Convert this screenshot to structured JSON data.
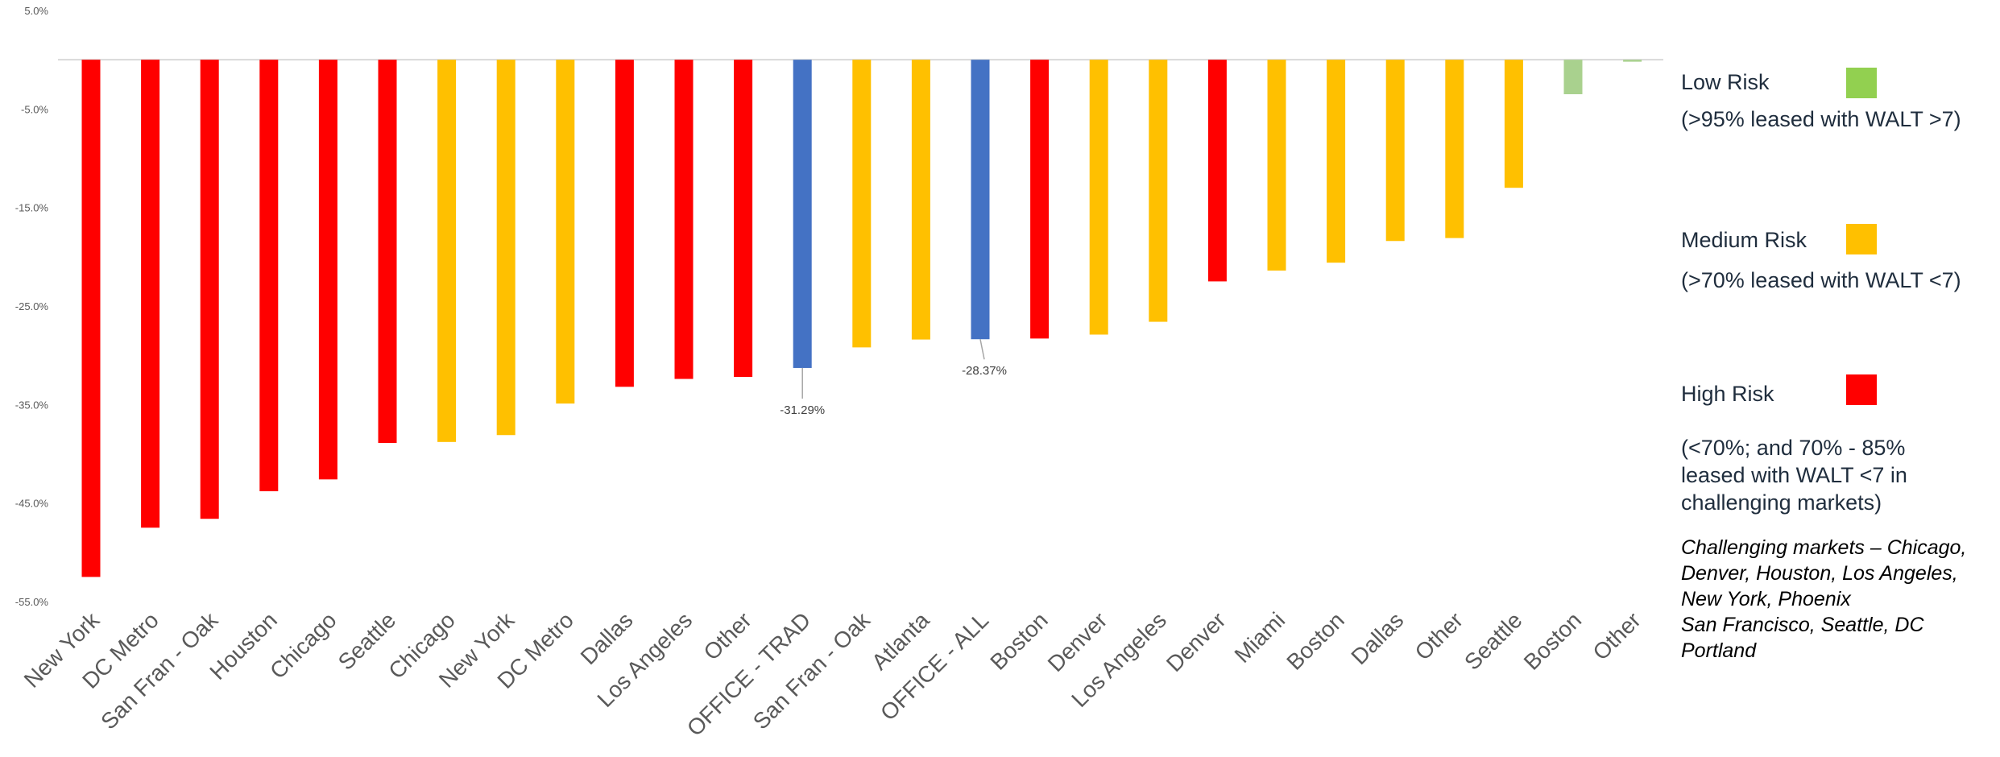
{
  "chart_data": {
    "type": "bar",
    "ylim": [
      -55,
      5
    ],
    "y_ticks": [
      "5.0%",
      "-5.0%",
      "-15.0%",
      "-25.0%",
      "-35.0%",
      "-45.0%",
      "-55.0%"
    ],
    "y_tick_values": [
      5,
      -5,
      -15,
      -25,
      -35,
      -45,
      -55
    ],
    "grid": false,
    "categories": [
      "New York",
      "DC Metro",
      "San Fran - Oak",
      "Houston",
      "Chicago",
      "Seattle",
      "Chicago",
      "New York",
      "DC Metro",
      "Dallas",
      "Los Angeles",
      "Other",
      "OFFICE - TRAD",
      "San Fran - Oak",
      "Atlanta",
      "OFFICE - ALL",
      "Boston",
      "Denver",
      "Los Angeles",
      "Denver",
      "Miami",
      "Boston",
      "Dallas",
      "Other",
      "Seattle",
      "Boston",
      "Other"
    ],
    "values": [
      -52.5,
      -47.5,
      -46.6,
      -43.8,
      -42.6,
      -38.9,
      -38.8,
      -38.1,
      -34.9,
      -33.2,
      -32.4,
      -32.2,
      -31.29,
      -29.2,
      -28.4,
      -28.37,
      -28.3,
      -27.9,
      -26.6,
      -22.5,
      -21.4,
      -20.6,
      -18.4,
      -18.1,
      -13.0,
      -3.5,
      -0.2
    ],
    "risk": [
      "High",
      "High",
      "High",
      "High",
      "High",
      "High",
      "Medium",
      "Medium",
      "Medium",
      "High",
      "High",
      "High",
      "Total",
      "Medium",
      "Medium",
      "Total",
      "High",
      "Medium",
      "Medium",
      "High",
      "Medium",
      "Medium",
      "Medium",
      "Medium",
      "Medium",
      "Low",
      "Low"
    ],
    "colors": {
      "High": "#ff0000",
      "Medium": "#ffc000",
      "Low": "#a9d18e",
      "Total": "#4472c4"
    },
    "data_labels": [
      {
        "index": 12,
        "text": "-31.29%"
      },
      {
        "index": 15,
        "text": "-28.37%"
      }
    ]
  },
  "legend": {
    "items": [
      {
        "title": "Low Risk",
        "color": "#92d050",
        "description": [
          "(>95% leased with WALT >7)"
        ]
      },
      {
        "title": "Medium Risk",
        "color": "#ffc000",
        "description": [
          "(>70% leased with WALT <7)"
        ]
      },
      {
        "title": "High Risk",
        "color": "#ff0000",
        "description": [
          "(<70%; and 70% - 85%",
          "leased with WALT <7 in",
          "challenging markets)"
        ]
      }
    ],
    "note_lines": [
      "Challenging markets – Chicago,",
      "Denver, Houston, Los Angeles,",
      "New York, Phoenix",
      "San Francisco, Seattle, DC",
      "Portland"
    ]
  }
}
